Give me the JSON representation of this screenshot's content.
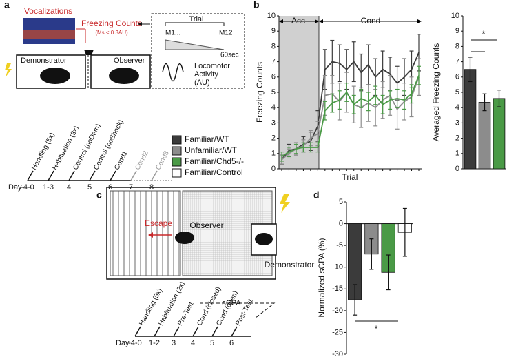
{
  "panel_labels": [
    "a",
    "b",
    "c",
    "d"
  ],
  "legend": [
    {
      "name": "Familiar/WT",
      "color": "#3b3b3b"
    },
    {
      "name": "Unfamiliar/WT",
      "color": "#8c8c8c"
    },
    {
      "name": "Familiar/Chd5-/-",
      "color": "#4a9a46"
    },
    {
      "name": "Familiar/Control",
      "color": "#ffffff"
    }
  ],
  "diagram_a": {
    "vocalizations": "Vocalizations",
    "freezing": "Freezing Counts",
    "criterion": "(Ms < 0.3AU)",
    "trial": "Trial",
    "m1": "M1...",
    "m12": "M12",
    "duration": "60sec",
    "locomotor": [
      "Locomotor",
      "Activity",
      "(AU)"
    ],
    "demonstrator": "Demonstrator",
    "observer": "Observer",
    "timeline": {
      "day": "Day",
      "steps": [
        {
          "label": "Handling (5x)",
          "day": "-4-0"
        },
        {
          "label": "Habituation (3x)",
          "day": "1-3"
        },
        {
          "label": "Control (noDem)",
          "day": "4"
        },
        {
          "label": "Control (noShock)",
          "day": "5"
        },
        {
          "label": "Cond1",
          "day": "6"
        },
        {
          "label": "Cond2",
          "day": "7"
        },
        {
          "label": "Cond3",
          "day": "8"
        }
      ]
    }
  },
  "diagram_c": {
    "escape": "Escape",
    "observer": "Observer",
    "demonstrator": "Demonstrator",
    "scpa": "sCPA",
    "timeline": {
      "day": "Day",
      "steps": [
        {
          "label": "Handling (5x)",
          "day": "-4-0"
        },
        {
          "label": "Habituation (2x)",
          "day": "1-2"
        },
        {
          "label": "Pre-Test",
          "day": "3"
        },
        {
          "label": "Cond (closed)",
          "day": "4"
        },
        {
          "label": "Cond (open)",
          "day": "5"
        },
        {
          "label": "Post-Test",
          "day": "6"
        }
      ]
    }
  },
  "chart_data": [
    {
      "type": "line",
      "ylabel": "Freezing Counts",
      "xlabel": "Trial",
      "annotations": [
        "Acc",
        "Cond"
      ],
      "categories": [
        null,
        null,
        null,
        null,
        null,
        null,
        null,
        null,
        null,
        null,
        null,
        null,
        null,
        null,
        null,
        null,
        null,
        null,
        null,
        null
      ],
      "ylim": [
        0,
        10
      ],
      "yticks": [
        0,
        1,
        2,
        3,
        4,
        5,
        6,
        7,
        8,
        9,
        10
      ],
      "series": [
        {
          "name": "Familiar/WT",
          "color": "#3b3b3b",
          "values": [
            0.6,
            1.2,
            1.3,
            1.6,
            1.8,
            2.8,
            6.5,
            7.0,
            6.9,
            6.5,
            7.0,
            6.3,
            6.8,
            6.0,
            6.5,
            6.2,
            5.6,
            6.0,
            6.5,
            7.6
          ],
          "errors": [
            0.3,
            0.4,
            0.4,
            0.5,
            0.6,
            1.0,
            1.3,
            1.4,
            1.2,
            1.3,
            1.3,
            1.2,
            1.3,
            1.2,
            1.2,
            1.1,
            1.1,
            1.2,
            1.2,
            1.2
          ]
        },
        {
          "name": "Unfamiliar/WT",
          "color": "#8c8c8c",
          "values": [
            0.6,
            1.0,
            1.3,
            1.5,
            2.0,
            2.3,
            4.8,
            4.9,
            4.4,
            5.0,
            4.2,
            4.0,
            4.3,
            4.0,
            4.5,
            4.8,
            3.9,
            4.4,
            4.7,
            6.0
          ],
          "errors": [
            0.3,
            0.3,
            0.4,
            0.4,
            0.5,
            0.8,
            1.3,
            1.2,
            1.2,
            1.3,
            1.2,
            1.3,
            1.2,
            1.2,
            1.2,
            1.3,
            1.3,
            1.2,
            1.3,
            1.2
          ]
        },
        {
          "name": "Familiar/Chd5-/-",
          "color": "#4a9a46",
          "values": [
            0.8,
            1.1,
            1.3,
            1.4,
            1.4,
            1.4,
            3.8,
            4.3,
            4.5,
            5.0,
            4.2,
            4.6,
            4.4,
            4.8,
            4.2,
            4.5,
            4.6,
            4.5,
            4.9,
            6.1
          ],
          "errors": [
            0.3,
            0.3,
            0.3,
            0.3,
            0.3,
            0.3,
            0.6,
            0.6,
            0.6,
            0.6,
            0.6,
            0.6,
            0.6,
            0.6,
            0.6,
            0.6,
            0.6,
            0.6,
            0.6,
            0.6
          ]
        }
      ]
    },
    {
      "type": "bar",
      "ylabel": "Averaged Freezing Counts",
      "annotations": [
        "*"
      ],
      "categories": [
        null,
        null,
        null
      ],
      "values": [
        6.5,
        4.35,
        4.6
      ],
      "errors": [
        0.8,
        0.55,
        0.55
      ],
      "colors": [
        "#3b3b3b",
        "#8c8c8c",
        "#4a9a46"
      ],
      "ylim": [
        0,
        10
      ],
      "yticks": [
        0,
        1,
        2,
        3,
        4,
        5,
        6,
        7,
        8,
        9,
        10
      ]
    },
    {
      "type": "bar",
      "ylabel": "Normalized sCPA (%)",
      "annotations": [
        "*"
      ],
      "categories": [
        null,
        null,
        null,
        null
      ],
      "values": [
        -17.5,
        -7,
        -11.2,
        -2
      ],
      "errors": [
        3.5,
        3.5,
        4,
        5.5
      ],
      "colors": [
        "#3b3b3b",
        "#8c8c8c",
        "#4a9a46",
        "#ffffff"
      ],
      "ylim": [
        -30,
        5
      ],
      "yticks": [
        -30,
        -25,
        -20,
        -15,
        -10,
        -5,
        0,
        5
      ]
    }
  ]
}
